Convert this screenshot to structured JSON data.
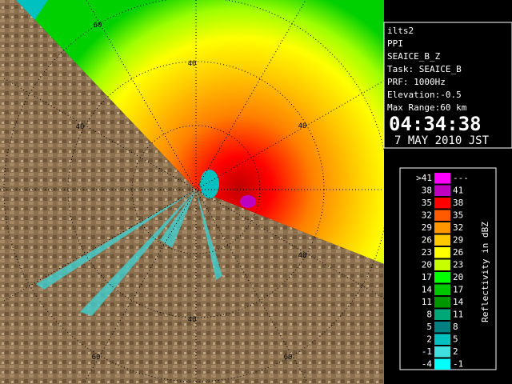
{
  "info": {
    "lines": [
      "ilts2",
      "PPI",
      "SEAICE_B_Z",
      "Task: SEAICE_B",
      "PRF: 1000Hz",
      "Elevation:-0.5",
      "Max Range:60 km"
    ],
    "time": "04:34:38",
    "date": "7 MAY 2010 JST"
  },
  "range_labels": [
    "60",
    "40",
    "40",
    "40",
    "40",
    "40",
    "60",
    "60"
  ],
  "legend": {
    "title": "Reflectivity in dBZ",
    "rows": [
      {
        "low": ">41",
        "high": "---",
        "color": "#ff00ff"
      },
      {
        "low": "38",
        "high": "41",
        "color": "#c000c0"
      },
      {
        "low": "35",
        "high": "38",
        "color": "#ff0000"
      },
      {
        "low": "32",
        "high": "35",
        "color": "#ff5a00"
      },
      {
        "low": "29",
        "high": "32",
        "color": "#ff9600"
      },
      {
        "low": "26",
        "high": "29",
        "color": "#ffc800"
      },
      {
        "low": "23",
        "high": "26",
        "color": "#ffff00"
      },
      {
        "low": "20",
        "high": "23",
        "color": "#c8ff00"
      },
      {
        "low": "17",
        "high": "20",
        "color": "#00ff00"
      },
      {
        "low": "14",
        "high": "17",
        "color": "#00c800"
      },
      {
        "low": "11",
        "high": "14",
        "color": "#009600"
      },
      {
        "low": "8",
        "high": "11",
        "color": "#00a878"
      },
      {
        "low": "5",
        "high": "8",
        "color": "#008080"
      },
      {
        "low": "2",
        "high": "5",
        "color": "#00c0c0"
      },
      {
        "low": "-1",
        "high": "2",
        "color": "#40e0e0"
      },
      {
        "low": "-4",
        "high": "-1",
        "color": "#00ffff"
      }
    ]
  }
}
